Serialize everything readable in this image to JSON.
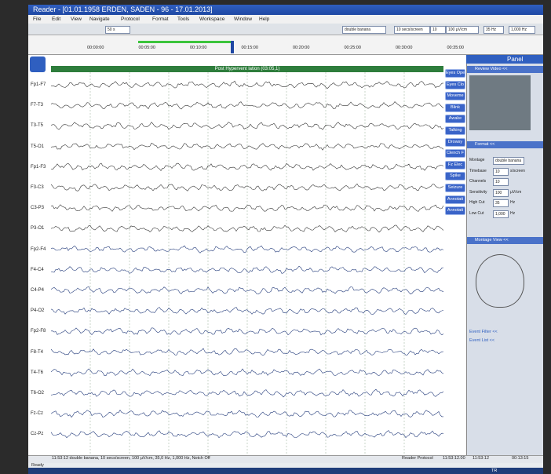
{
  "window": {
    "title": "Reader - [01.01.1958 ERDEN, SADEN - 96 - 17.01.2013]",
    "menu": [
      "File",
      "Edit",
      "View",
      "Navigate",
      "Protocol",
      "Format",
      "Tools",
      "Workspace",
      "Window",
      "Help"
    ],
    "status": "Ready"
  },
  "toolbar": {
    "zoom": "50 s",
    "montage": "double banana",
    "timebase": "10 secs/screen",
    "channels": "10",
    "sensitivity": "100 µV/cm",
    "high_cut": "35 Hz",
    "low_cut": "1,000 Hz"
  },
  "timeline": [
    "00:00:00",
    "00:05:00",
    "00:10:00",
    "00:15:00",
    "00:20:00",
    "00:25:00",
    "00:30:00",
    "00:35:00"
  ],
  "recording": {
    "banner": "Post Hypervent lation (03:05,1)",
    "channels": [
      "Fp1-F7",
      "F7-T3",
      "T3-T5",
      "T5-O1",
      "Fp1-F3",
      "F3-C3",
      "C3-P3",
      "P3-O1",
      "Fp2-F4",
      "F4-C4",
      "C4-P4",
      "P4-O2",
      "Fp2-F8",
      "F8-T4",
      "T4-T6",
      "T6-O2",
      "Fz-Cz",
      "Cz-Pz"
    ],
    "events": [
      "Eyes Ope",
      "Eyes Clo",
      "Moveme",
      "Blink",
      "Awake",
      "Talking",
      "Drowsy",
      "Clench F",
      "Fz Elec",
      "Spike",
      "Seizure",
      "Annotati",
      "Annotati"
    ]
  },
  "panel": {
    "title": "Panel",
    "review_video": "Review Video <<",
    "format": {
      "title": "Format <<",
      "fields": [
        {
          "label": "Montage",
          "value": "double banana"
        },
        {
          "label": "Timebase",
          "value": "10",
          "unit": "s/screen"
        },
        {
          "label": "Channels",
          "value": "10"
        },
        {
          "label": "Sensitivity",
          "value": "100",
          "unit": "µV/cm"
        },
        {
          "label": "High Cut",
          "value": "35",
          "unit": "Hz"
        },
        {
          "label": "Low Cut",
          "value": "1,000",
          "unit": "Hz"
        }
      ]
    },
    "montage_view": "Montage View <<",
    "event_filter": "Event Filter <<",
    "event_list": "Event List <<"
  },
  "status_bar": {
    "summary": "11:53:12 double banana, 10 secs/screen, 100 µV/cm, 35,0 Hz, 1,000 Hz, Notch Off",
    "protocol": "Reader Protocol",
    "time1": "11:53:12.00",
    "time2": "11:53:12",
    "duration": "00:13:15"
  },
  "taskbar": {
    "lang": "TR"
  }
}
